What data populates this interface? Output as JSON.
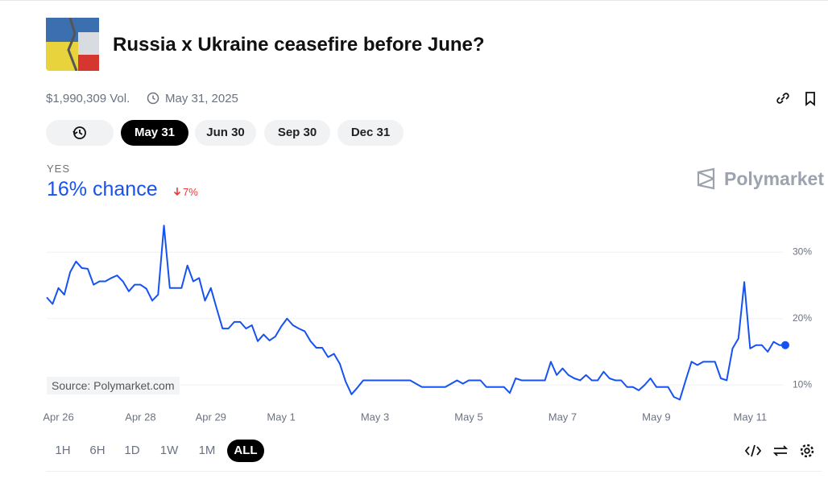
{
  "header": {
    "title": "Russia x Ukraine ceasefire before June?",
    "volume": "$1,990,309 Vol.",
    "end_date": "May 31, 2025"
  },
  "date_tabs": [
    "May 31",
    "Jun 30",
    "Sep 30",
    "Dec 31"
  ],
  "outcome": {
    "label": "YES",
    "chance": "16% chance",
    "change": "7%"
  },
  "brand": "Polymarket",
  "source": "Source: Polymarket.com",
  "ranges": [
    "1H",
    "6H",
    "1D",
    "1W",
    "1M",
    "ALL"
  ],
  "chart_data": {
    "type": "line",
    "color": "#1652f0",
    "grid": true,
    "categories": [
      null,
      null,
      "Apr 26",
      null,
      null,
      null,
      null,
      null,
      null,
      null,
      null,
      null,
      null,
      null,
      null,
      null,
      "Apr 28",
      null,
      null,
      null,
      null,
      null,
      null,
      null,
      null,
      null,
      null,
      null,
      "Apr 29",
      null,
      null,
      null,
      null,
      null,
      null,
      null,
      null,
      null,
      null,
      null,
      "May 1",
      null,
      null,
      null,
      null,
      null,
      null,
      null,
      null,
      null,
      null,
      null,
      null,
      null,
      null,
      null,
      "May 3",
      null,
      null,
      null,
      null,
      null,
      null,
      null,
      null,
      null,
      null,
      null,
      null,
      null,
      null,
      null,
      "May 5",
      null,
      null,
      null,
      null,
      null,
      null,
      null,
      null,
      null,
      null,
      null,
      null,
      null,
      null,
      null,
      "May 7",
      null,
      null,
      null,
      null,
      null,
      null,
      null,
      null,
      null,
      null,
      null,
      null,
      null,
      null,
      null,
      "May 9",
      null,
      null,
      null,
      null,
      null,
      null,
      null,
      null,
      null,
      null,
      null,
      null,
      null,
      null,
      null,
      "May 11",
      null,
      null,
      null,
      null,
      null,
      null
    ],
    "values": [
      23.2,
      22.2,
      24.6,
      23.6,
      27,
      28.6,
      27.6,
      27.5,
      25.1,
      25.6,
      25.6,
      26.1,
      26.5,
      25.6,
      24.1,
      25.1,
      25.1,
      24.5,
      22.7,
      23.6,
      34,
      24.6,
      24.6,
      24.6,
      28,
      25.6,
      26.1,
      22.7,
      24.6,
      21.5,
      18.5,
      18.5,
      19.5,
      19.5,
      18.5,
      19,
      16.6,
      17.6,
      16.7,
      17.3,
      18.8,
      20,
      19,
      18.5,
      18.1,
      16.6,
      15.6,
      15.6,
      14.2,
      14.7,
      13.2,
      10.5,
      8.6,
      9.6,
      10.7,
      10.7,
      10.7,
      10.7,
      10.7,
      10.7,
      10.7,
      10.7,
      10.7,
      10.2,
      9.7,
      9.7,
      9.7,
      9.7,
      9.7,
      10.2,
      10.7,
      10.2,
      10.7,
      10.7,
      10.7,
      9.7,
      9.7,
      9.7,
      9.7,
      8.8,
      11,
      10.7,
      10.7,
      10.7,
      10.7,
      10.7,
      13.5,
      11.5,
      12.5,
      11.5,
      11,
      10.7,
      11.5,
      10.7,
      10.7,
      12,
      11,
      10.7,
      10.7,
      9.7,
      9.7,
      9.2,
      10,
      11,
      9.7,
      9.7,
      9.7,
      8.2,
      7.8,
      10.7,
      13.5,
      13,
      13.5,
      13.5,
      13.5,
      11,
      10.7,
      15.5,
      17,
      25.5,
      15.5,
      16,
      16,
      15,
      16.5,
      16,
      16
    ],
    "ylim": [
      7,
      35
    ],
    "yticks": [
      {
        "value": 10,
        "label": "10%"
      },
      {
        "value": 20,
        "label": "20%"
      },
      {
        "value": 30,
        "label": "30%"
      }
    ]
  }
}
